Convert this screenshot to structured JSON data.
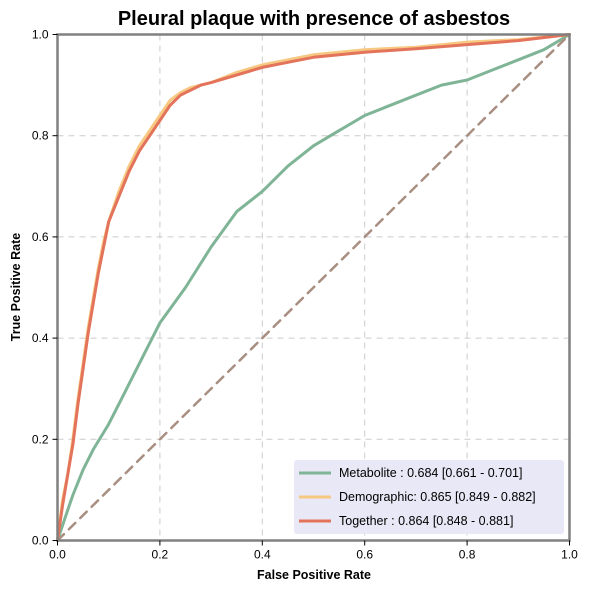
{
  "chart_data": {
    "type": "line",
    "title": "Pleural plaque with presence of asbestos",
    "xlabel": "False Positive Rate",
    "ylabel": "True Positive Rate",
    "xlim": [
      0,
      1
    ],
    "ylim": [
      0,
      1
    ],
    "xticks": [
      "0.0",
      "0.2",
      "0.4",
      "0.6",
      "0.8",
      "1.0"
    ],
    "yticks": [
      "0.0",
      "0.2",
      "0.4",
      "0.6",
      "0.8",
      "1.0"
    ],
    "grid": true,
    "legend_position": "bottom-right",
    "series": [
      {
        "name": "Metabolite",
        "legend_label": "Metabolite      : 0.684 [0.661 - 0.701]",
        "color": "#7fb596",
        "x": [
          0,
          0.01,
          0.02,
          0.03,
          0.05,
          0.07,
          0.1,
          0.13,
          0.16,
          0.2,
          0.25,
          0.3,
          0.35,
          0.4,
          0.45,
          0.5,
          0.55,
          0.6,
          0.65,
          0.7,
          0.75,
          0.8,
          0.85,
          0.9,
          0.95,
          1.0
        ],
        "y": [
          0,
          0.03,
          0.06,
          0.09,
          0.14,
          0.18,
          0.23,
          0.29,
          0.35,
          0.43,
          0.5,
          0.58,
          0.65,
          0.69,
          0.74,
          0.78,
          0.81,
          0.84,
          0.86,
          0.88,
          0.9,
          0.91,
          0.93,
          0.95,
          0.97,
          1.0
        ]
      },
      {
        "name": "Demographic",
        "legend_label": "Demographic: 0.865 [0.849 - 0.882]",
        "color": "#f7c882",
        "x": [
          0,
          0.01,
          0.02,
          0.03,
          0.04,
          0.05,
          0.06,
          0.07,
          0.08,
          0.09,
          0.1,
          0.12,
          0.14,
          0.16,
          0.18,
          0.2,
          0.22,
          0.24,
          0.26,
          0.28,
          0.3,
          0.35,
          0.4,
          0.45,
          0.5,
          0.6,
          0.7,
          0.8,
          0.9,
          1.0
        ],
        "y": [
          0,
          0.08,
          0.13,
          0.2,
          0.28,
          0.35,
          0.42,
          0.48,
          0.54,
          0.59,
          0.63,
          0.69,
          0.74,
          0.78,
          0.81,
          0.84,
          0.87,
          0.885,
          0.895,
          0.9,
          0.905,
          0.925,
          0.94,
          0.95,
          0.96,
          0.97,
          0.975,
          0.985,
          0.99,
          1.0
        ]
      },
      {
        "name": "Together",
        "legend_label": "Together       : 0.864 [0.848 - 0.881]",
        "color": "#e3735a",
        "x": [
          0,
          0.01,
          0.02,
          0.03,
          0.04,
          0.05,
          0.06,
          0.07,
          0.08,
          0.09,
          0.1,
          0.12,
          0.14,
          0.16,
          0.18,
          0.2,
          0.22,
          0.24,
          0.26,
          0.28,
          0.3,
          0.35,
          0.4,
          0.45,
          0.5,
          0.6,
          0.7,
          0.8,
          0.9,
          1.0
        ],
        "y": [
          0,
          0.07,
          0.13,
          0.19,
          0.27,
          0.34,
          0.41,
          0.47,
          0.53,
          0.58,
          0.63,
          0.68,
          0.73,
          0.77,
          0.8,
          0.83,
          0.86,
          0.88,
          0.89,
          0.9,
          0.905,
          0.92,
          0.935,
          0.945,
          0.955,
          0.965,
          0.972,
          0.98,
          0.988,
          1.0
        ]
      },
      {
        "name": "chance",
        "color": "#a88f82",
        "dashed": true,
        "x": [
          0,
          1
        ],
        "y": [
          0,
          1
        ]
      }
    ]
  },
  "colors": {
    "grid": "#cccccc",
    "frame": "#808080",
    "legend_bg": "#e8e8f6"
  }
}
